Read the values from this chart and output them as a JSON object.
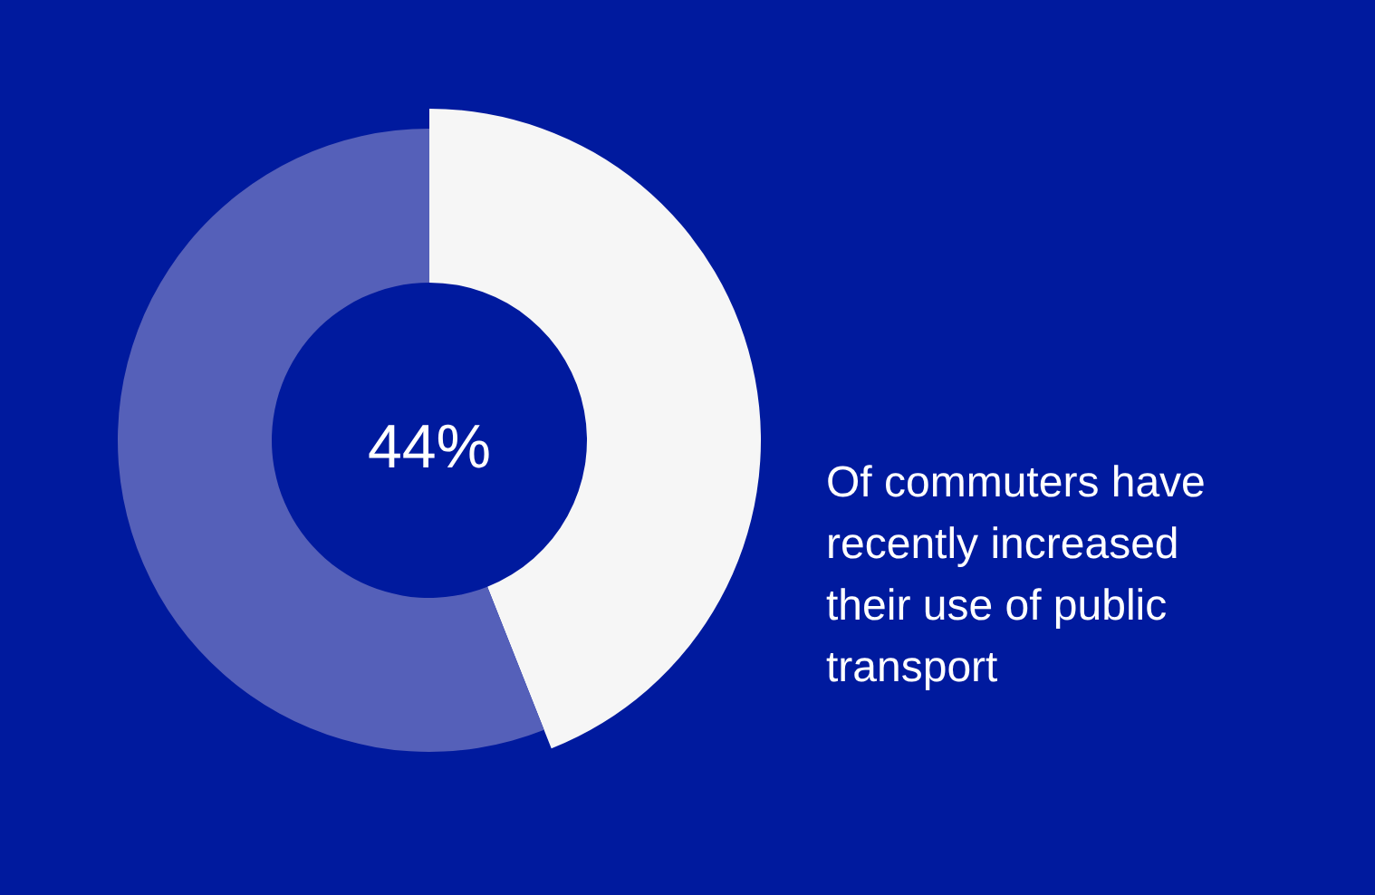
{
  "chart_data": {
    "type": "donut",
    "categories": [
      null,
      null
    ],
    "values": [
      44,
      56
    ],
    "colors": [
      "#f6f6f6",
      "#5560b9"
    ],
    "annotations": [
      "44%",
      "Of commuters have recently increased their use of public transport"
    ]
  }
}
